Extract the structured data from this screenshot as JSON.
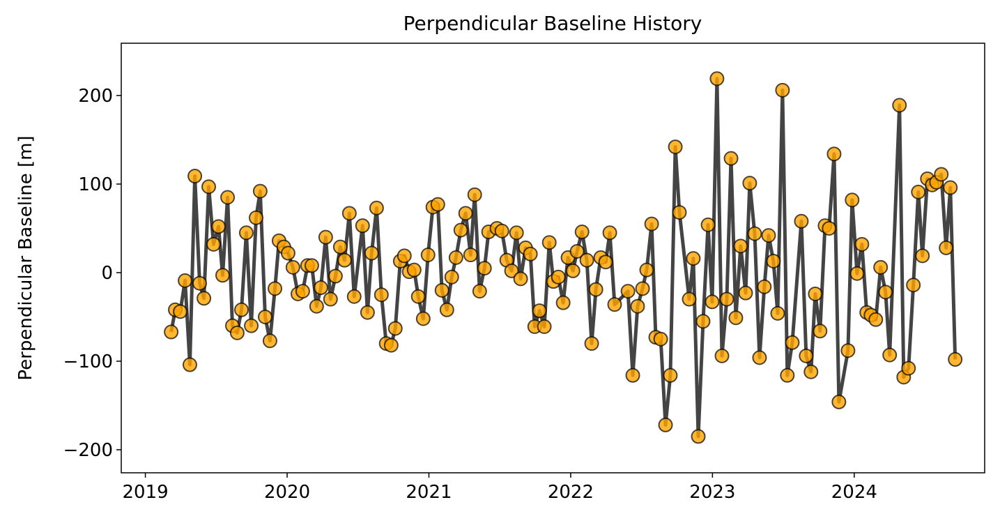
{
  "chart_data": {
    "type": "line",
    "title": "Perpendicular Baseline History",
    "ylabel": "Perpendicular Baseline [m]",
    "xlim": [
      2018.83,
      2024.92
    ],
    "xticks": [
      2019,
      2020,
      2021,
      2022,
      2023,
      2024
    ],
    "ylim": [
      -226,
      259
    ],
    "yticks": [
      -200,
      -100,
      0,
      100,
      200
    ],
    "grid": false,
    "series": [
      {
        "color": "#ffa500",
        "line_color": "#444444",
        "x": [
          2019.182,
          2019.211,
          2019.246,
          2019.28,
          2019.314,
          2019.349,
          2019.383,
          2019.413,
          2019.447,
          2019.481,
          2019.516,
          2019.545,
          2019.58,
          2019.614,
          2019.648,
          2019.678,
          2019.712,
          2019.747,
          2019.781,
          2019.81,
          2019.845,
          2019.879,
          2019.914,
          2019.943,
          2019.977,
          2020.007,
          2020.041,
          2020.076,
          2020.11,
          2020.144,
          2020.174,
          2020.208,
          2020.238,
          2020.272,
          2020.306,
          2020.341,
          2020.375,
          2020.405,
          2020.439,
          2020.473,
          2020.532,
          2020.567,
          2020.596,
          2020.631,
          2020.665,
          2020.699,
          2020.734,
          2020.763,
          2020.798,
          2020.827,
          2020.861,
          2020.896,
          2020.925,
          2020.96,
          2020.994,
          2021.028,
          2021.063,
          2021.092,
          2021.127,
          2021.161,
          2021.191,
          2021.225,
          2021.259,
          2021.294,
          2021.323,
          2021.358,
          2021.392,
          2021.421,
          2021.48,
          2021.515,
          2021.549,
          2021.583,
          2021.618,
          2021.647,
          2021.682,
          2021.716,
          2021.746,
          2021.78,
          2021.814,
          2021.849,
          2021.878,
          2021.913,
          2021.947,
          2021.981,
          2022.016,
          2022.045,
          2022.08,
          2022.114,
          2022.148,
          2022.178,
          2022.212,
          2022.247,
          2022.276,
          2022.31,
          2022.404,
          2022.438,
          2022.472,
          2022.507,
          2022.536,
          2022.571,
          2022.6,
          2022.635,
          2022.669,
          2022.703,
          2022.738,
          2022.767,
          2022.836,
          2022.865,
          2022.9,
          2022.934,
          2022.969,
          2022.998,
          2023.032,
          2023.067,
          2023.101,
          2023.131,
          2023.165,
          2023.199,
          2023.234,
          2023.263,
          2023.298,
          2023.332,
          2023.366,
          2023.396,
          2023.43,
          2023.46,
          2023.494,
          2023.528,
          2023.563,
          2023.627,
          2023.661,
          2023.695,
          2023.725,
          2023.759,
          2023.794,
          2023.823,
          2023.858,
          2023.892,
          2023.956,
          2023.985,
          2024.02,
          2024.054,
          2024.088,
          2024.118,
          2024.152,
          2024.186,
          2024.221,
          2024.25,
          2024.319,
          2024.349,
          2024.383,
          2024.417,
          2024.452,
          2024.481,
          2024.516,
          2024.55,
          2024.58,
          2024.614,
          2024.648,
          2024.678,
          2024.712
        ],
        "values": [
          -67,
          -42,
          -44,
          -9,
          -104,
          109,
          -12,
          -29,
          97,
          32,
          52,
          -3,
          85,
          -60,
          -68,
          -42,
          45,
          -60,
          62,
          92,
          -50,
          -77,
          -18,
          36,
          29,
          22,
          6,
          -24,
          -21,
          8,
          8,
          -38,
          -17,
          40,
          -30,
          -4,
          29,
          14,
          67,
          -27,
          53,
          -45,
          22,
          73,
          -25,
          -80,
          -82,
          -63,
          13,
          19,
          1,
          3,
          -27,
          -52,
          20,
          74,
          77,
          -20,
          -42,
          -5,
          17,
          48,
          67,
          20,
          88,
          -21,
          5,
          46,
          50,
          47,
          14,
          2,
          45,
          -7,
          28,
          21,
          -61,
          -43,
          -61,
          34,
          -10,
          -5,
          -34,
          17,
          2,
          24,
          46,
          14,
          -80,
          -19,
          17,
          12,
          45,
          -36,
          -21,
          -116,
          -38,
          -18,
          3,
          55,
          -73,
          -75,
          -172,
          -116,
          142,
          68,
          -30,
          16,
          -185,
          -55,
          54,
          -33,
          219,
          -94,
          -30,
          129,
          -51,
          30,
          -23,
          101,
          44,
          -96,
          -16,
          42,
          13,
          -46,
          206,
          -116,
          -79,
          58,
          -94,
          -112,
          -24,
          -66,
          53,
          50,
          134,
          -146,
          -88,
          82,
          -1,
          32,
          -45,
          -48,
          -53,
          6,
          -22,
          -93,
          189,
          -118,
          -108,
          -14,
          91,
          19,
          106,
          99,
          102,
          111,
          28,
          96,
          -98
        ]
      }
    ]
  }
}
